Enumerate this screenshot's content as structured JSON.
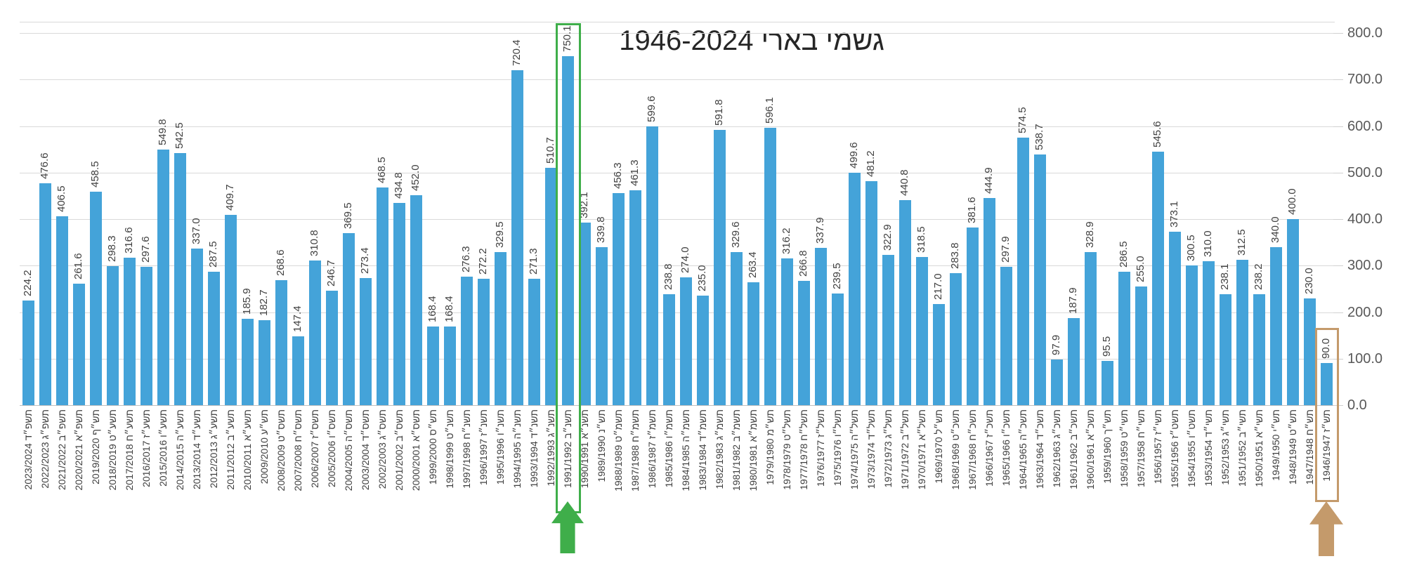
{
  "title": "גשמי בארי 1946-2024",
  "colors": {
    "bar": "#44a3d9",
    "highlight_green": "#3fae4a",
    "highlight_tan": "#c49a6b",
    "gridline": "#d9d9d9",
    "value_label": "#404040",
    "axis_label": "#595959",
    "title_text": "#262626"
  },
  "y_axis": {
    "ticks": [
      "800.0",
      "700.0",
      "600.0",
      "500.0",
      "400.0",
      "300.0",
      "200.0",
      "100.0",
      "0.0"
    ]
  },
  "annotations": {
    "green_arrow": "up-arrow-green-icon",
    "tan_arrow": "up-arrow-tan-icon",
    "green_box_year": "1991/1992",
    "tan_box_year": "1946/1947"
  },
  "chart_data": {
    "type": "bar",
    "title": "גשמי בארי 1946-2024",
    "xlabel": "",
    "ylabel": "",
    "ylim": [
      0,
      800
    ],
    "grid": true,
    "bars": [
      {
        "he": "תשפ״ד",
        "yr": "2023/2024",
        "v": "224.2"
      },
      {
        "he": "תשפ״ג",
        "yr": "2022/2023",
        "v": "476.6"
      },
      {
        "he": "תשפ״ב",
        "yr": "2021/2022",
        "v": "406.5"
      },
      {
        "he": "תשפ״א",
        "yr": "2020/2021",
        "v": "261.6"
      },
      {
        "he": "תש״ף",
        "yr": "2019/2020",
        "v": "458.5"
      },
      {
        "he": "תשע״ט",
        "yr": "2018/2019",
        "v": "298.3"
      },
      {
        "he": "תשע״ח",
        "yr": "2017/2018",
        "v": "316.6"
      },
      {
        "he": "תשע״ז",
        "yr": "2016/2017",
        "v": "297.6"
      },
      {
        "he": "תשע״ו",
        "yr": "2015/2016",
        "v": "549.8"
      },
      {
        "he": "תשע״ה",
        "yr": "2014/2015",
        "v": "542.5"
      },
      {
        "he": "תשע״ד",
        "yr": "2013/2014",
        "v": "337.0"
      },
      {
        "he": "תשע״ג",
        "yr": "2012/2013",
        "v": "287.5"
      },
      {
        "he": "תשע״ב",
        "yr": "2011/2012",
        "v": "409.7"
      },
      {
        "he": "תשע״א",
        "yr": "2010/2011",
        "v": "185.9"
      },
      {
        "he": "תש״ע",
        "yr": "2009/2010",
        "v": "182.7"
      },
      {
        "he": "תשס״ט",
        "yr": "2008/2009",
        "v": "268.6"
      },
      {
        "he": "תשס״ח",
        "yr": "2007/2008",
        "v": "147.4"
      },
      {
        "he": "תשס״ז",
        "yr": "2006/2007",
        "v": "310.8"
      },
      {
        "he": "תשס״ו",
        "yr": "2005/2006",
        "v": "246.7"
      },
      {
        "he": "תשס״ה",
        "yr": "2004/2005",
        "v": "369.5"
      },
      {
        "he": "תשס״ד",
        "yr": "2003/2004",
        "v": "273.4"
      },
      {
        "he": "תשס״ג",
        "yr": "2002/2003",
        "v": "468.5"
      },
      {
        "he": "תשס״ב",
        "yr": "2001/2002",
        "v": "434.8"
      },
      {
        "he": "תשס״א",
        "yr": "2000/2001",
        "v": "452.0"
      },
      {
        "he": "תש״ס",
        "yr": "1999/2000",
        "v": "168.4"
      },
      {
        "he": "תשנ״ט",
        "yr": "1998/1999",
        "v": "168.4"
      },
      {
        "he": "תשנ״ח",
        "yr": "1997/1998",
        "v": "276.3"
      },
      {
        "he": "תשנ״ז",
        "yr": "1996/1997",
        "v": "272.2"
      },
      {
        "he": "תשנ״ו",
        "yr": "1995/1996",
        "v": "329.5"
      },
      {
        "he": "תשנ״ה",
        "yr": "1994/1995",
        "v": "720.4"
      },
      {
        "he": "תשנ״ד",
        "yr": "1993/1994",
        "v": "271.3"
      },
      {
        "he": "תשנ״ג",
        "yr": "1992/1993",
        "v": "510.7"
      },
      {
        "he": "תשנ״ב",
        "yr": "1991/1992",
        "v": "750.1",
        "hl": "green"
      },
      {
        "he": "תשנ״א",
        "yr": "1990/1991",
        "v": "392.1"
      },
      {
        "he": "תש״נ",
        "yr": "1989/1990",
        "v": "339.8"
      },
      {
        "he": "תשמ״ט",
        "yr": "1988/1989",
        "v": "456.3"
      },
      {
        "he": "תשמ״ח",
        "yr": "1987/1988",
        "v": "461.3"
      },
      {
        "he": "תשמ״ז",
        "yr": "1986/1987",
        "v": "599.6"
      },
      {
        "he": "תשמ״ו",
        "yr": "1985/1986",
        "v": "238.8"
      },
      {
        "he": "תשמ״ה",
        "yr": "1984/1985",
        "v": "274.0"
      },
      {
        "he": "תשמ״ד",
        "yr": "1983/1984",
        "v": "235.0"
      },
      {
        "he": "תשמ״ג",
        "yr": "1982/1983",
        "v": "591.8"
      },
      {
        "he": "תשמ״ב",
        "yr": "1981/1982",
        "v": "329.6"
      },
      {
        "he": "תשמ״א",
        "yr": "1980/1981",
        "v": "263.4"
      },
      {
        "he": "תש״מ",
        "yr": "1979/1980",
        "v": "596.1"
      },
      {
        "he": "תשל״ט",
        "yr": "1978/1979",
        "v": "316.2"
      },
      {
        "he": "תשל״ח",
        "yr": "1977/1978",
        "v": "266.8"
      },
      {
        "he": "תשל״ז",
        "yr": "1976/1977",
        "v": "337.9"
      },
      {
        "he": "תשל״ו",
        "yr": "1975/1976",
        "v": "239.5"
      },
      {
        "he": "תשל״ה",
        "yr": "1974/1975",
        "v": "499.6"
      },
      {
        "he": "תשל״ד",
        "yr": "1973/1974",
        "v": "481.2"
      },
      {
        "he": "תשל״ג",
        "yr": "1972/1973",
        "v": "322.9"
      },
      {
        "he": "תשל״ב",
        "yr": "1971/1972",
        "v": "440.8"
      },
      {
        "he": "תשל״א",
        "yr": "1970/1971",
        "v": "318.5"
      },
      {
        "he": "תש״ל",
        "yr": "1969/1970",
        "v": "217.0"
      },
      {
        "he": "תשכ״ט",
        "yr": "1968/1969",
        "v": "283.8"
      },
      {
        "he": "תשכ״ח",
        "yr": "1967/1968",
        "v": "381.6"
      },
      {
        "he": "תשכ״ז",
        "yr": "1966/1967",
        "v": "444.9"
      },
      {
        "he": "תשכ״ו",
        "yr": "1965/1966",
        "v": "297.9"
      },
      {
        "he": "תשכ״ה",
        "yr": "1964/1965",
        "v": "574.5"
      },
      {
        "he": "תשכ״ד",
        "yr": "1963/1964",
        "v": "538.7"
      },
      {
        "he": "תשכ״ג",
        "yr": "1962/1963",
        "v": "97.9"
      },
      {
        "he": "תשכ״ב",
        "yr": "1961/1962",
        "v": "187.9"
      },
      {
        "he": "תשכ״א",
        "yr": "1960/1961",
        "v": "328.9"
      },
      {
        "he": "תש״ך",
        "yr": "1959/1960",
        "v": "95.5"
      },
      {
        "he": "תשי״ט",
        "yr": "1958/1959",
        "v": "286.5"
      },
      {
        "he": "תשי״ח",
        "yr": "1957/1958",
        "v": "255.0"
      },
      {
        "he": "תשי״ז",
        "yr": "1956/1957",
        "v": "545.6"
      },
      {
        "he": "תשט״ז",
        "yr": "1955/1956",
        "v": "373.1"
      },
      {
        "he": "תשט״ו",
        "yr": "1954/1955",
        "v": "300.5"
      },
      {
        "he": "תשי״ד",
        "yr": "1953/1954",
        "v": "310.0"
      },
      {
        "he": "תשי״ג",
        "yr": "1952/1953",
        "v": "238.1"
      },
      {
        "he": "תשי״ב",
        "yr": "1951/1952",
        "v": "312.5"
      },
      {
        "he": "תשי״א",
        "yr": "1950/1951",
        "v": "238.2"
      },
      {
        "he": "תש״י",
        "yr": "1949/1950",
        "v": "340.0"
      },
      {
        "he": "תש״ט",
        "yr": "1948/1949",
        "v": "400.0"
      },
      {
        "he": "תש״ח",
        "yr": "1947/1948",
        "v": "230.0"
      },
      {
        "he": "תש״ז",
        "yr": "1946/1947",
        "v": "90.0",
        "hl": "tan"
      }
    ]
  }
}
